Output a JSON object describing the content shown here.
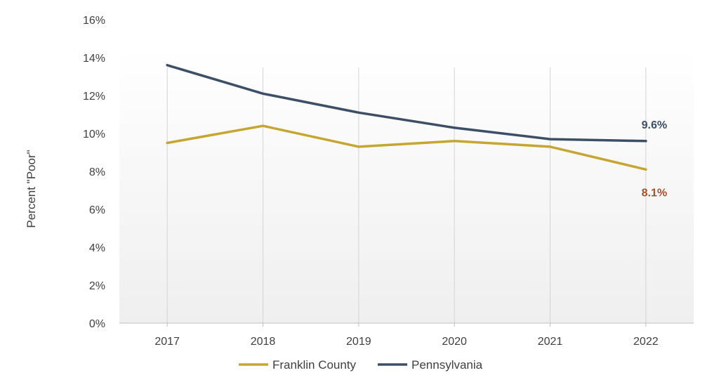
{
  "chart_data": {
    "type": "line",
    "title": "",
    "xlabel": "",
    "ylabel": "Percent \"Poor\"",
    "categories": [
      "2017",
      "2018",
      "2019",
      "2020",
      "2021",
      "2022"
    ],
    "ylim": [
      0,
      16
    ],
    "yticks": [
      0,
      2,
      4,
      6,
      8,
      10,
      12,
      14,
      16
    ],
    "ytick_labels": [
      "0%",
      "2%",
      "4%",
      "6%",
      "8%",
      "10%",
      "12%",
      "14%",
      "16%"
    ],
    "grid": "vertical",
    "legend_position": "bottom",
    "series": [
      {
        "name": "Franklin County",
        "color": "#C5A632",
        "values": [
          9.5,
          10.4,
          9.3,
          9.6,
          9.3,
          8.1
        ],
        "end_label": "8.1%",
        "end_label_color": "#A0522D"
      },
      {
        "name": "Pennsylvania",
        "color": "#3D4F66",
        "values": [
          13.6,
          12.1,
          11.1,
          10.3,
          9.7,
          9.6
        ],
        "end_label": "9.6%",
        "end_label_color": "#3D4F66"
      }
    ]
  }
}
